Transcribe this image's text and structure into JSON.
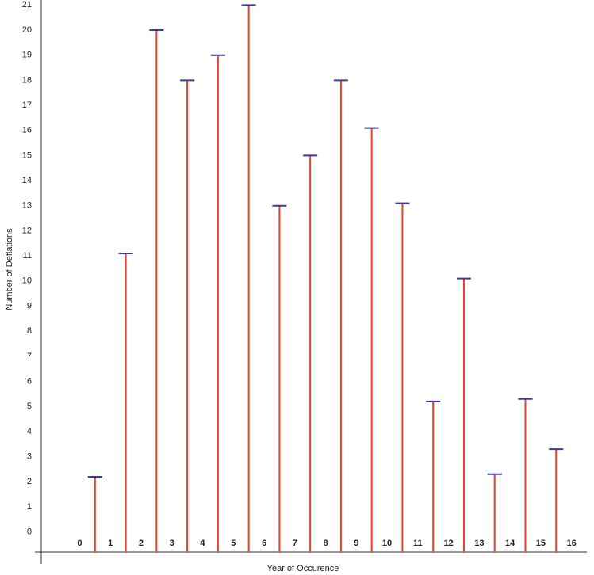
{
  "chart_data": {
    "type": "stem",
    "x_label": "Year of Occurence",
    "y_label": "Number of Deflations",
    "x": [
      0.5,
      1.5,
      2.5,
      3.5,
      4.5,
      5.5,
      6.5,
      7.5,
      8.5,
      9.5,
      10.5,
      11.5,
      12.5,
      13.5,
      14.5,
      15.5
    ],
    "values": [
      2.2,
      11.1,
      20,
      18,
      19,
      21,
      13,
      15,
      18,
      16.1,
      13.1,
      5.2,
      10.1,
      2.3,
      5.3,
      3.3
    ],
    "color": "#e8402a",
    "cap_color": "#3a3a9e",
    "xlim": [
      -1.25,
      16.5
    ],
    "xticks": [
      0,
      1,
      2,
      3,
      4,
      5,
      6,
      7,
      8,
      9,
      10,
      11,
      12,
      13,
      14,
      15,
      16
    ],
    "ylim": [
      -0.8,
      21.2
    ],
    "yticks": [
      0,
      1,
      2,
      3,
      4,
      5,
      6,
      7,
      8,
      9,
      10,
      11,
      12,
      13,
      14,
      15,
      16,
      17,
      18,
      19,
      20,
      21
    ],
    "grid": false
  }
}
